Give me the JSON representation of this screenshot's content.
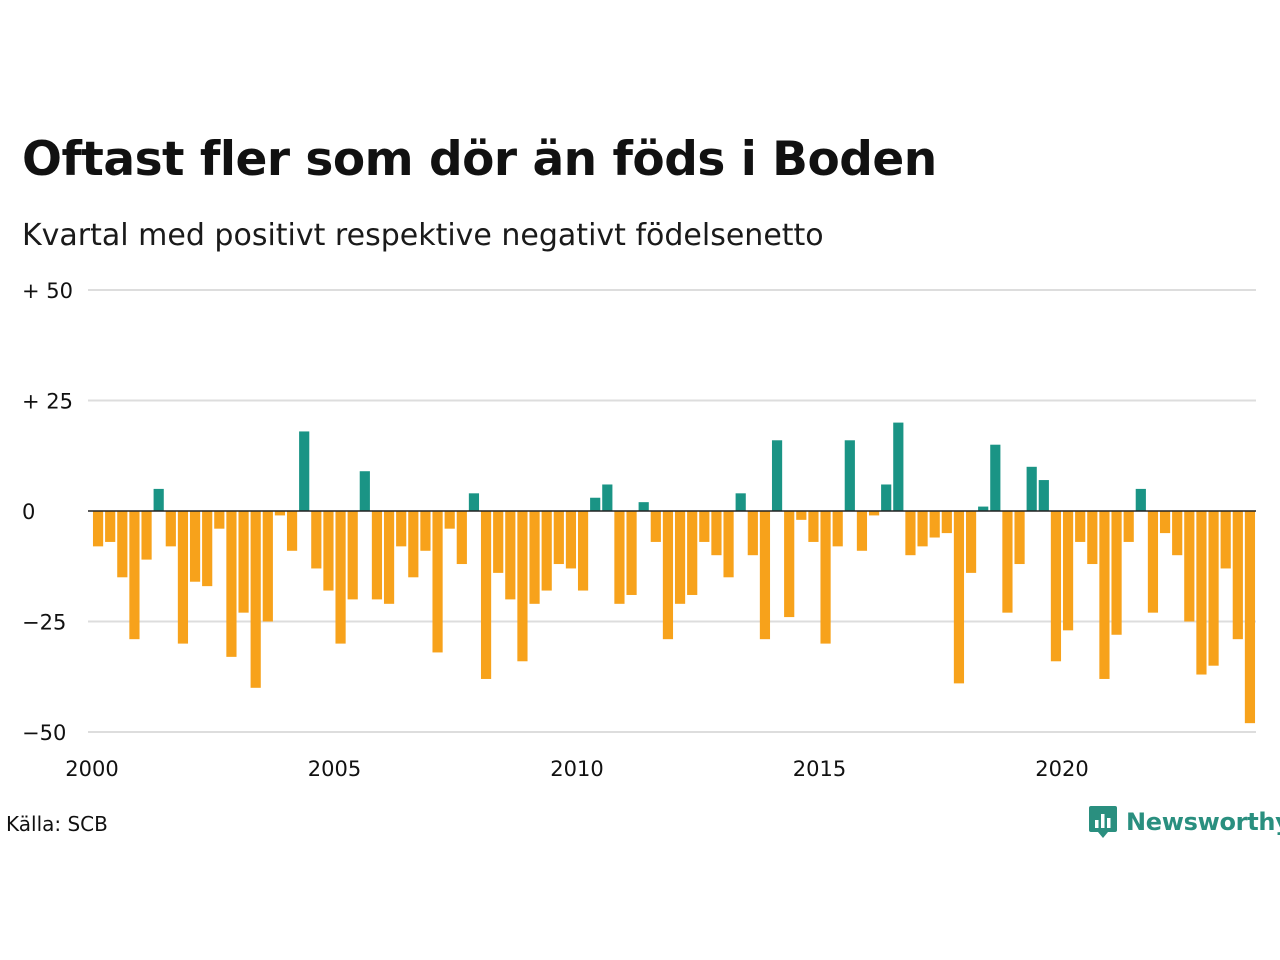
{
  "title": "Oftast fler som dör än föds i Boden",
  "subtitle": "Kvartal med positivt respektive negativt födelsenetto",
  "source": "Källa: SCB",
  "brand": "Newsworthy",
  "colors": {
    "positive": "#1a9485",
    "negative": "#f7a21b",
    "grid": "#dddddd",
    "zero": "#222222",
    "brand": "#2a8f7f"
  },
  "icons": {
    "logo": "newsworthy-chart-bubble-icon"
  },
  "chart_data": {
    "type": "bar",
    "ylim": [
      -50,
      50
    ],
    "y_ticks": [
      {
        "value": 50,
        "label": "+ 50"
      },
      {
        "value": 25,
        "label": "+ 25"
      },
      {
        "value": 0,
        "label": "0"
      },
      {
        "value": -25,
        "label": "−25"
      },
      {
        "value": -50,
        "label": "−50"
      }
    ],
    "x_range": [
      2000,
      2024
    ],
    "x_ticks": [
      {
        "value": 2000,
        "label": "2000"
      },
      {
        "value": 2005,
        "label": "2005"
      },
      {
        "value": 2010,
        "label": "2010"
      },
      {
        "value": 2015,
        "label": "2015"
      },
      {
        "value": 2020,
        "label": "2020"
      }
    ],
    "grid": true,
    "categories": [
      "2000 Q1",
      "2000 Q2",
      "2000 Q3",
      "2000 Q4",
      "2001 Q1",
      "2001 Q2",
      "2001 Q3",
      "2001 Q4",
      "2002 Q1",
      "2002 Q2",
      "2002 Q3",
      "2002 Q4",
      "2003 Q1",
      "2003 Q2",
      "2003 Q3",
      "2003 Q4",
      "2004 Q1",
      "2004 Q2",
      "2004 Q3",
      "2004 Q4",
      "2005 Q1",
      "2005 Q2",
      "2005 Q3",
      "2005 Q4",
      "2006 Q1",
      "2006 Q2",
      "2006 Q3",
      "2006 Q4",
      "2007 Q1",
      "2007 Q2",
      "2007 Q3",
      "2007 Q4",
      "2008 Q1",
      "2008 Q2",
      "2008 Q3",
      "2008 Q4",
      "2009 Q1",
      "2009 Q2",
      "2009 Q3",
      "2009 Q4",
      "2010 Q1",
      "2010 Q2",
      "2010 Q3",
      "2010 Q4",
      "2011 Q1",
      "2011 Q2",
      "2011 Q3",
      "2011 Q4",
      "2012 Q1",
      "2012 Q2",
      "2012 Q3",
      "2012 Q4",
      "2013 Q1",
      "2013 Q2",
      "2013 Q3",
      "2013 Q4",
      "2014 Q1",
      "2014 Q2",
      "2014 Q3",
      "2014 Q4",
      "2015 Q1",
      "2015 Q2",
      "2015 Q3",
      "2015 Q4",
      "2016 Q1",
      "2016 Q2",
      "2016 Q3",
      "2016 Q4",
      "2017 Q1",
      "2017 Q2",
      "2017 Q3",
      "2017 Q4",
      "2018 Q1",
      "2018 Q2",
      "2018 Q3",
      "2018 Q4",
      "2019 Q1",
      "2019 Q2",
      "2019 Q3",
      "2019 Q4",
      "2020 Q1",
      "2020 Q2",
      "2020 Q3",
      "2020 Q4",
      "2021 Q1",
      "2021 Q2",
      "2021 Q3",
      "2021 Q4",
      "2022 Q1",
      "2022 Q2",
      "2022 Q3",
      "2022 Q4",
      "2023 Q1",
      "2023 Q2",
      "2023 Q3",
      "2023 Q4"
    ],
    "values": [
      -8,
      -7,
      -15,
      -29,
      -11,
      5,
      -8,
      -30,
      -16,
      -17,
      -4,
      -33,
      -23,
      -40,
      -25,
      -1,
      -9,
      18,
      -13,
      -18,
      -30,
      -20,
      9,
      -20,
      -21,
      -8,
      -15,
      -9,
      -32,
      -4,
      -12,
      4,
      -38,
      -14,
      -20,
      -34,
      -21,
      -18,
      -12,
      -13,
      -18,
      3,
      6,
      -21,
      -19,
      2,
      -7,
      -29,
      -21,
      -19,
      -7,
      -10,
      -15,
      4,
      -10,
      -29,
      16,
      -24,
      -2,
      -7,
      -30,
      -8,
      16,
      -9,
      -1,
      6,
      20,
      -10,
      -8,
      -6,
      -5,
      -39,
      -14,
      1,
      15,
      -23,
      -12,
      10,
      7,
      -34,
      -27,
      -7,
      -12,
      -38,
      -28,
      -7,
      5,
      -23,
      -5,
      -10,
      -25,
      -37,
      -35,
      -13,
      -29,
      -48
    ]
  }
}
